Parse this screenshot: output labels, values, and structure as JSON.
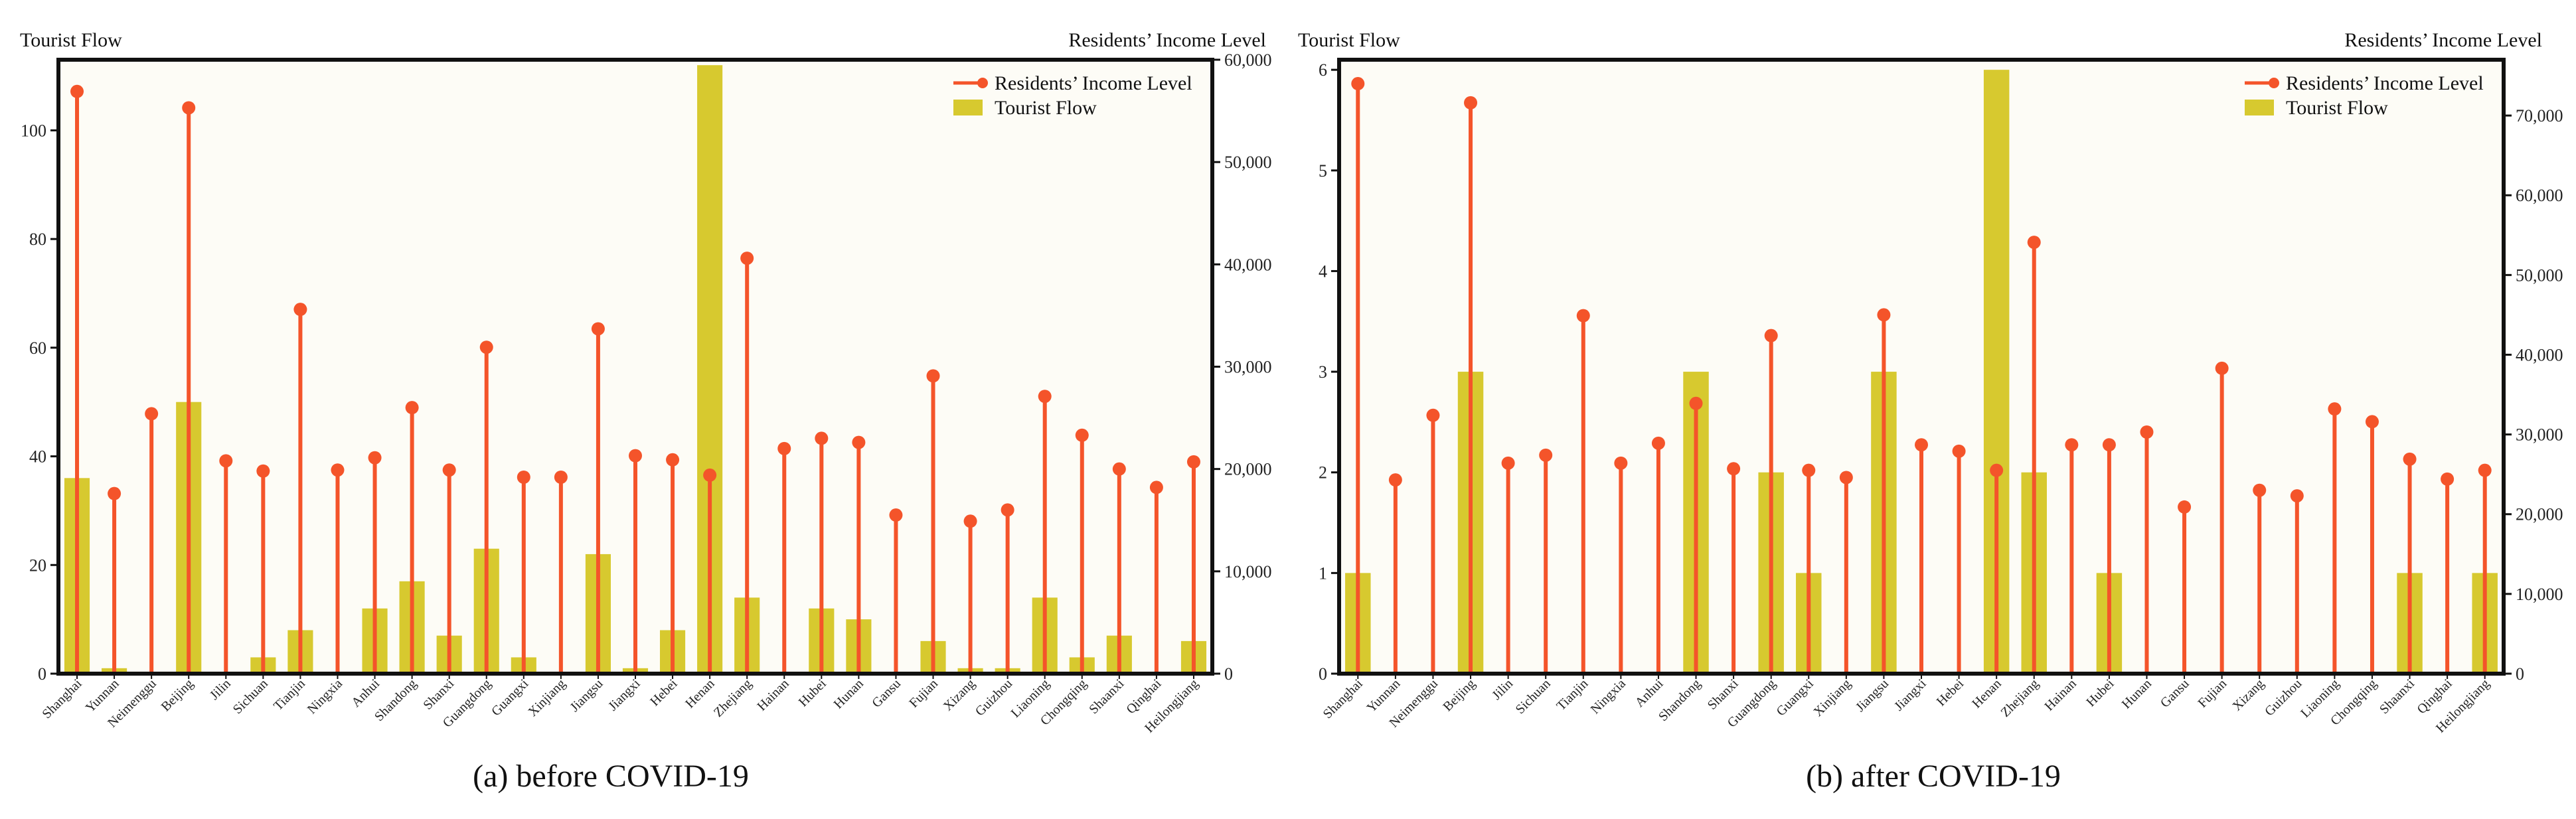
{
  "colors": {
    "income": "#f4542a",
    "tourist": "#d7c92f",
    "axis": "#111111",
    "background": "#fdfcf6"
  },
  "chart_data": [
    {
      "type": "bar+lollipop",
      "caption": "(a) before COVID-19",
      "ylabel_left": "Tourist Flow",
      "ylabel_right": "Residents’ Income Level",
      "ylim_left": [
        0,
        113
      ],
      "ylim_right": [
        0,
        60000
      ],
      "yticks_left": [
        0,
        20,
        40,
        60,
        80,
        100
      ],
      "yticks_right": [
        0,
        10000,
        20000,
        30000,
        40000,
        50000,
        60000
      ],
      "ytick_labels_left": [
        "0",
        "20",
        "40",
        "60",
        "80",
        "100"
      ],
      "ytick_labels_right": [
        "0",
        "10,000",
        "20,000",
        "30,000",
        "40,000",
        "50,000",
        "60,000"
      ],
      "legend": [
        "Residents’ Income Level",
        "Tourist Flow"
      ],
      "legend_position": "top-right",
      "categories": [
        "Shanghai",
        "Yunnan",
        "Neimenggu",
        "Beijing",
        "Jilin",
        "Sichuan",
        "Tianjin",
        "Ningxia",
        "Anhui",
        "Shandong",
        "Shanxi",
        "Guangdong",
        "Guangxi",
        "Xinjiang",
        "Jiangsu",
        "Jiangxi",
        "Hebei",
        "Henan",
        "Zhejiang",
        "Hainan",
        "Hubei",
        "Hunan",
        "Gansu",
        "Fujian",
        "Xizang",
        "Guizhou",
        "Liaoning",
        "Chongqing",
        "Shaanxi",
        "Qinghai",
        "Heilongjiang"
      ],
      "series": [
        {
          "name": "Tourist Flow",
          "axis": "left",
          "values": [
            36,
            1,
            0,
            50,
            0,
            3,
            8,
            0,
            12,
            17,
            7,
            23,
            3,
            0,
            22,
            1,
            8,
            112,
            14,
            0,
            12,
            10,
            0,
            6,
            1,
            1,
            14,
            3,
            7,
            0,
            6
          ]
        },
        {
          "name": "Residents’ Income Level",
          "axis": "right",
          "values": [
            56900,
            17600,
            25400,
            55300,
            20800,
            19800,
            35600,
            19900,
            21100,
            26000,
            19900,
            31900,
            19200,
            19200,
            33700,
            21300,
            20900,
            19400,
            40600,
            22000,
            23000,
            22600,
            15500,
            29100,
            14900,
            16000,
            27100,
            23300,
            20000,
            18200,
            20700
          ]
        }
      ]
    },
    {
      "type": "bar+lollipop",
      "caption": "(b) after COVID-19",
      "ylabel_left": "Tourist Flow",
      "ylabel_right": "Residents’ Income Level",
      "ylim_left": [
        0,
        6.1
      ],
      "ylim_right": [
        0,
        77000
      ],
      "yticks_left": [
        0,
        1,
        2,
        3,
        4,
        5,
        6
      ],
      "yticks_right": [
        0,
        10000,
        20000,
        30000,
        40000,
        50000,
        60000,
        70000
      ],
      "ytick_labels_left": [
        "0",
        "1",
        "2",
        "3",
        "4",
        "5",
        "6"
      ],
      "ytick_labels_right": [
        "0",
        "10,000",
        "20,000",
        "30,000",
        "40,000",
        "50,000",
        "60,000",
        "70,000"
      ],
      "legend": [
        "Residents’ Income Level",
        "Tourist Flow"
      ],
      "legend_position": "top-right",
      "categories": [
        "Shanghai",
        "Yunnan",
        "Neimenggu",
        "Beijing",
        "Jilin",
        "Sichuan",
        "Tianjin",
        "Ningxia",
        "Anhui",
        "Shandong",
        "Shanxi",
        "Guangdong",
        "Guangxi",
        "Xinjiang",
        "Jiangsu",
        "Jiangxi",
        "Hebei",
        "Henan",
        "Zhejiang",
        "Hainan",
        "Hubei",
        "Hunan",
        "Gansu",
        "Fujian",
        "Xizang",
        "Guizhou",
        "Liaoning",
        "Chongqing",
        "Shaanxi",
        "Qinghai",
        "Heilongjiang"
      ],
      "series": [
        {
          "name": "Tourist Flow",
          "axis": "left",
          "values": [
            1,
            0,
            0,
            3,
            0,
            0,
            0,
            0,
            0,
            3,
            0,
            2,
            1,
            0,
            3,
            0,
            0,
            6,
            2,
            0,
            1,
            0,
            0,
            0,
            0,
            0,
            0,
            0,
            1,
            0,
            1
          ]
        },
        {
          "name": "Residents’ Income Level",
          "axis": "right",
          "values": [
            74000,
            24300,
            32400,
            71600,
            26400,
            27400,
            44900,
            26400,
            28900,
            33900,
            25700,
            42400,
            25500,
            24600,
            45000,
            28700,
            27900,
            25500,
            54100,
            28700,
            28700,
            30300,
            20900,
            38300,
            23000,
            22300,
            33200,
            31600,
            26900,
            24400,
            25500
          ]
        }
      ]
    }
  ]
}
